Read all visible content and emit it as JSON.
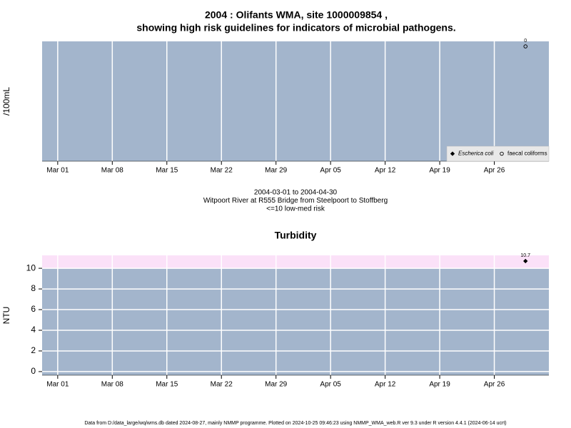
{
  "chart_data": [
    {
      "type": "scatter",
      "title": "2004 : Olifants WMA, site 1000009854 ,",
      "subtitle": "showing high risk guidelines for indicators of microbial pathogens.",
      "ylabel": "/100mL",
      "caption": [
        "2004-03-01 to 2004-04-30",
        "Witpoort River at R555 Bridge from Steelpoort to Stoffberg",
        "<=10 low-med risk"
      ],
      "xlim": [
        "2004-02-28",
        "2004-05-03"
      ],
      "xticks": [
        {
          "value": "2004-03-01",
          "label": "Mar 01"
        },
        {
          "value": "2004-03-08",
          "label": "Mar 08"
        },
        {
          "value": "2004-03-15",
          "label": "Mar 15"
        },
        {
          "value": "2004-03-22",
          "label": "Mar 22"
        },
        {
          "value": "2004-03-29",
          "label": "Mar 29"
        },
        {
          "value": "2004-04-05",
          "label": "Apr 05"
        },
        {
          "value": "2004-04-12",
          "label": "Apr 12"
        },
        {
          "value": "2004-04-19",
          "label": "Apr 19"
        },
        {
          "value": "2004-04-26",
          "label": "Apr 26"
        }
      ],
      "ylim": [
        -8,
        0.35
      ],
      "yticks": [],
      "grid": true,
      "background": "#a3b5cc",
      "legend": "bottom-right",
      "series": [
        {
          "name": "Escherica coli",
          "color": "#000000",
          "marker": "diamond-filled",
          "x": [],
          "values": []
        },
        {
          "name": "faecal coliforms",
          "color": "#000000",
          "marker": "circle-open",
          "x": [
            "2004-04-30"
          ],
          "values": [
            0
          ]
        }
      ]
    },
    {
      "type": "scatter",
      "title": "Turbidity",
      "ylabel": "NTU",
      "xlim": [
        "2004-02-28",
        "2004-05-03"
      ],
      "xticks": [
        {
          "value": "2004-03-01",
          "label": "Mar 01"
        },
        {
          "value": "2004-03-08",
          "label": "Mar 08"
        },
        {
          "value": "2004-03-15",
          "label": "Mar 15"
        },
        {
          "value": "2004-03-22",
          "label": "Mar 22"
        },
        {
          "value": "2004-03-29",
          "label": "Mar 29"
        },
        {
          "value": "2004-04-05",
          "label": "Apr 05"
        },
        {
          "value": "2004-04-12",
          "label": "Apr 12"
        },
        {
          "value": "2004-04-19",
          "label": "Apr 19"
        },
        {
          "value": "2004-04-26",
          "label": "Apr 26"
        }
      ],
      "ylim": [
        -0.35,
        11.25
      ],
      "yticks": [
        0,
        2,
        4,
        6,
        8,
        10
      ],
      "grid": true,
      "background": "#a3b5cc",
      "band": {
        "from": 10,
        "color": "#fbe1f8"
      },
      "series": [
        {
          "color": "#000000",
          "marker": "diamond-filled",
          "x": [
            "2004-04-30"
          ],
          "values": [
            10.7
          ]
        }
      ]
    }
  ],
  "footer": "Data from D:/data_large/wq/wms.db dated 2024-08-27, mainly NMMP programme. Plotted on 2024-10-25 09:46:23 using NMMP_WMA_web.R ver 9.3 under R version 4.4.1 (2024-06-14 ucrt)"
}
